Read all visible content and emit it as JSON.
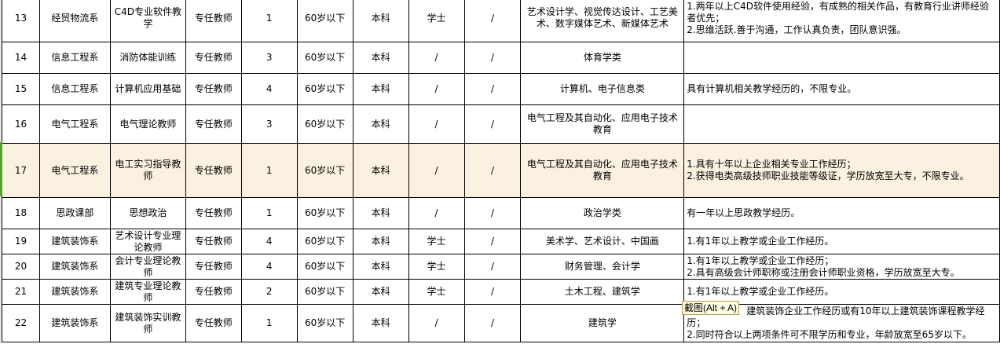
{
  "rows": [
    {
      "no": "13",
      "dept": "经贸物流系",
      "course": "C4D专业软件教学",
      "type": "专任教师",
      "count": "1",
      "age": "60岁以下",
      "edu": "本科",
      "degree": "学士",
      "other": "/",
      "major": "艺术设计学、视觉传达设计、工艺美术、数字媒体艺术、新媒体艺术",
      "req": "1.两年以上C4D软件使用经验，有成熟的相关作品，有教育行业讲师经验者优先；\n2.思维活跃.善于沟通，工作认真负责，团队意识强。"
    },
    {
      "no": "14",
      "dept": "信息工程系",
      "course": "消防体能训练",
      "type": "专任教师",
      "count": "3",
      "age": "60岁以下",
      "edu": "本科",
      "degree": "/",
      "other": "/",
      "major": "体育学类",
      "req": ""
    },
    {
      "no": "15",
      "dept": "信息工程系",
      "course": "计算机应用基础",
      "type": "专任教师",
      "count": "4",
      "age": "60岁以下",
      "edu": "本科",
      "degree": "/",
      "other": "/",
      "major": "计算机、电子信息类",
      "req": "具有计算机相关教学经历的，不限专业。"
    },
    {
      "no": "16",
      "dept": "电气工程系",
      "course": "电气理论教师",
      "type": "专任教师",
      "count": "3",
      "age": "60岁以下",
      "edu": "本科",
      "degree": "/",
      "other": "/",
      "major": "电气工程及其自动化、应用电子技术教育",
      "req": ""
    },
    {
      "no": "17",
      "dept": "电气工程系",
      "course": "电工实习指导教师",
      "type": "专任教师",
      "count": "1",
      "age": "60岁以下",
      "edu": "本科",
      "degree": "/",
      "other": "/",
      "major": "电气工程及其自动化、应用电子技术教育",
      "req": "1.具有十年以上企业相关专业工作经历；\n2.获得电类高级技师职业技能等级证，学历放宽至大专，不限专业。"
    },
    {
      "no": "18",
      "dept": "思政课部",
      "course": "思想政治",
      "type": "专任教师",
      "count": "1",
      "age": "60岁以下",
      "edu": "本科",
      "degree": "/",
      "other": "/",
      "major": "政治学类",
      "req": "有一年以上思政教学经历。"
    },
    {
      "no": "19",
      "dept": "建筑装饰系",
      "course": "艺术设计专业理论教师",
      "type": "专任教师",
      "count": "4",
      "age": "60岁以下",
      "edu": "本科",
      "degree": "学士",
      "other": "/",
      "major": "美术学、艺术设计、中国画",
      "req": "1.有1年以上教学或企业工作经历。"
    },
    {
      "no": "20",
      "dept": "建筑装饰系",
      "course": "会计专业理论教师",
      "type": "专任教师",
      "count": "4",
      "age": "60岁以下",
      "edu": "本科",
      "degree": "学士",
      "other": "/",
      "major": "财务管理、会计学",
      "req": "1.有1年以上教学或企业工作经历；\n2.具有高级会计师职称或注册会计师职业资格，学历放宽至大专。"
    },
    {
      "no": "21",
      "dept": "建筑装饰系",
      "course": "建筑专业理论教师",
      "type": "专任教师",
      "count": "2",
      "age": "60岁以下",
      "edu": "本科",
      "degree": "学士",
      "other": "/",
      "major": "土木工程、建筑学",
      "req": "1.有1年以上教学或企业工作经历。"
    },
    {
      "no": "22",
      "dept": "建筑装饰系",
      "course": "建筑装饰实训教师",
      "type": "专任教师",
      "count": "1",
      "age": "60岁以下",
      "edu": "本科",
      "degree": "/",
      "other": "/",
      "major": "建筑学",
      "req_line1": "建筑装饰企业工作经历或有10年以上建筑装饰课程教学经历；",
      "req_rest": "2.同时符合以上两项条件可不限学历和专业，年龄放宽至65岁以下。"
    }
  ],
  "tooltip": "截图(Alt + A)",
  "colors": {
    "highlight_row": "#faf1e0",
    "selection_marker": "#5c9e31"
  }
}
